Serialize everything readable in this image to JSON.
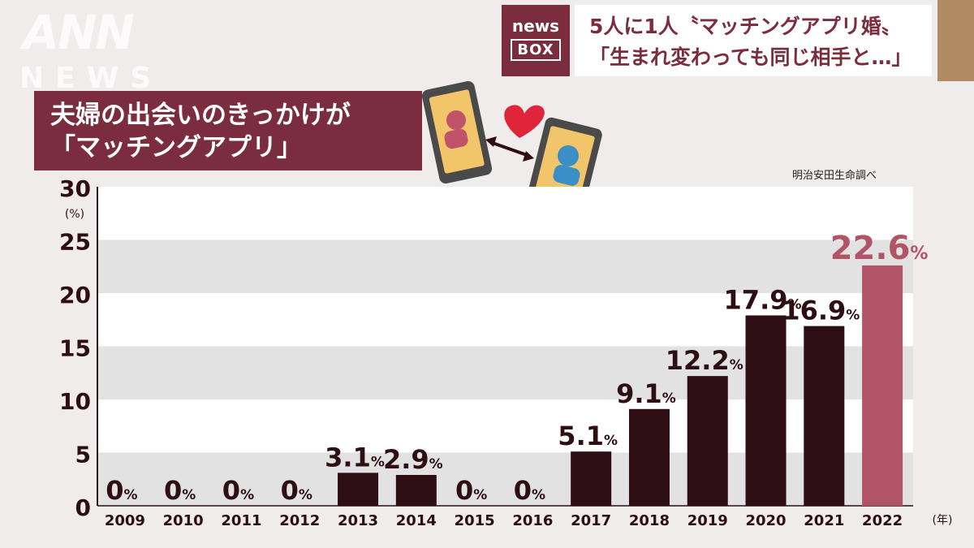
{
  "watermark": {
    "logo": "ANN",
    "sub": "NEWS"
  },
  "badge": {
    "line1": "news",
    "line2": "BOX"
  },
  "headline": {
    "line1": "5人に1人〝マッチングアプリ婚〟",
    "line2": "「生まれ変わっても同じ相手と…」"
  },
  "chart_title": {
    "line1": "夫婦の出会いのきっかけが",
    "line2": "「マッチングアプリ」"
  },
  "source": "明治安田生命調べ",
  "colors": {
    "bar": "#2c0e14",
    "highlight_bar": "#b15468",
    "label": "#2c0e14",
    "highlight_label": "#b15468",
    "accent": "#7b2d3d"
  },
  "chart_data": {
    "type": "bar",
    "categories": [
      "2009",
      "2010",
      "2011",
      "2012",
      "2013",
      "2014",
      "2015",
      "2016",
      "2017",
      "2018",
      "2019",
      "2020",
      "2021",
      "2022"
    ],
    "values": [
      0,
      0,
      0,
      0,
      3.1,
      2.9,
      0,
      0,
      5.1,
      9.1,
      12.2,
      17.9,
      16.9,
      22.6
    ],
    "value_labels": [
      "0",
      "0",
      "0",
      "0",
      "3.1",
      "2.9",
      "0",
      "0",
      "5.1",
      "9.1",
      "12.2",
      "17.9",
      "16.9",
      "22.6"
    ],
    "value_unit": "%",
    "highlight_index": 13,
    "ylim": [
      0,
      30
    ],
    "yticks": [
      0,
      5,
      10,
      15,
      20,
      25,
      30
    ],
    "ylabel": "(%)",
    "xlabel": "(年)",
    "grid": "alternating bands"
  }
}
